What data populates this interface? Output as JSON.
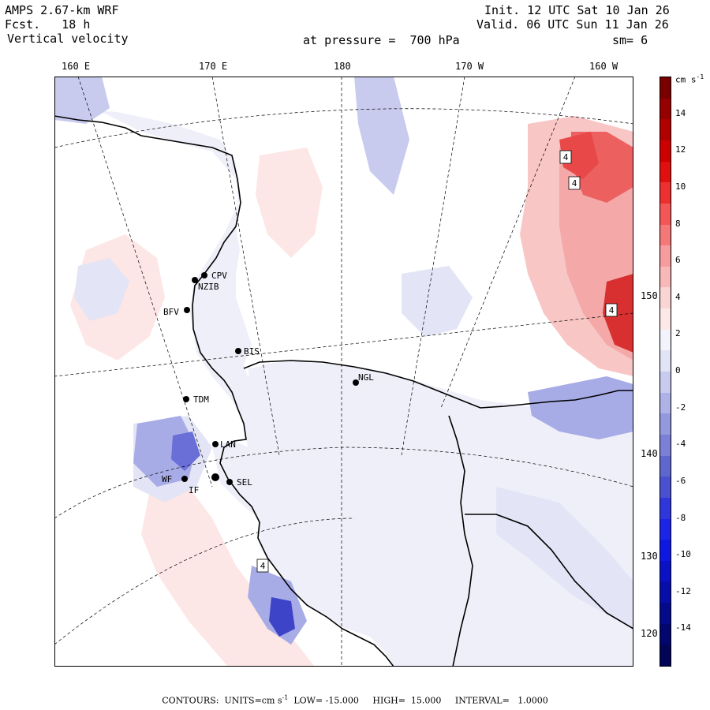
{
  "header": {
    "model": "AMPS 2.67-km WRF",
    "forecast": "Fcst.   18 h",
    "field": "Vertical velocity",
    "init": "Init. 12 UTC Sat 10 Jan 26",
    "valid": "Valid. 06 UTC Sun 11 Jan 26",
    "level": "at pressure =  700 hPa",
    "smoothing": "sm= 6"
  },
  "map": {
    "top_longitude_labels": [
      "160 E",
      "170 E",
      "180",
      "170 W",
      "160 W"
    ],
    "right_latitude_labels": [
      "150 W",
      "140 W",
      "130 W",
      "120 W"
    ],
    "stations": [
      "CPV",
      "NZIB",
      "BFV",
      "BIS",
      "NGL",
      "TDM",
      "LAN",
      "SEL",
      "WF",
      "IF"
    ],
    "extremum_markers": [
      "4",
      "4",
      "4",
      "4"
    ],
    "colors": {
      "ocean": "#ffffff",
      "land_neutral": "#efeff9",
      "weak_up": "#fde3e3",
      "weak_down": "#e2e4f6",
      "up_mid": "#f4a8a8",
      "down_mid": "#a8ace6",
      "up_strong": "#d83030",
      "down_strong": "#2c2cc8",
      "coast": "#000000"
    }
  },
  "colorbar": {
    "unit_text": "cm s",
    "unit_exp": "-1",
    "tick_labels": [
      "14",
      "12",
      "10",
      "8",
      "6",
      "4",
      "2",
      "0",
      "-2",
      "-4",
      "-6",
      "-8",
      "-10",
      "-12",
      "-14"
    ],
    "colors": [
      "#7a0000",
      "#960000",
      "#b00000",
      "#cc0000",
      "#e01010",
      "#ec3030",
      "#f25656",
      "#f57878",
      "#f79c9c",
      "#f9b8b8",
      "#fbd4d4",
      "#fde8e8",
      "#f3f3fb",
      "#e2e4f6",
      "#c8cbee",
      "#aeb2e6",
      "#9499de",
      "#7a80d6",
      "#5f66ce",
      "#4a50d0",
      "#2f36da",
      "#1c24e6",
      "#0f18e0",
      "#0a12c4",
      "#070ea8",
      "#050a8a",
      "#03066e",
      "#020456"
    ]
  },
  "footer": {
    "contours_label": "CONTOURS:",
    "units_label": "UNITS=cm s",
    "units_exp": "-1",
    "low": "LOW= -15.000",
    "high": "HIGH=  15.000",
    "interval": "INTERVAL=   1.0000"
  }
}
